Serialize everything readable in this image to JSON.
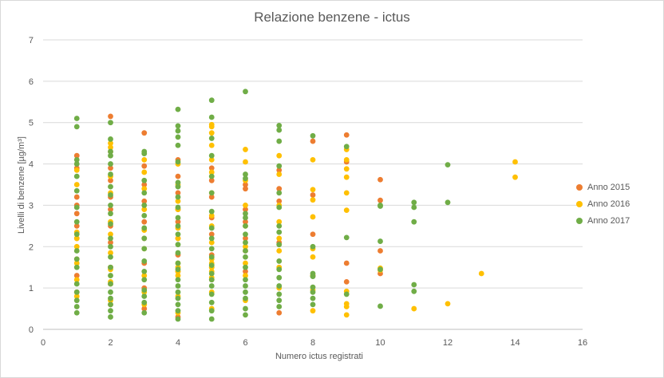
{
  "chart_data": {
    "type": "scatter",
    "title": "Relazione benzene - ictus",
    "xlabel": "Numero  ictus registrati",
    "ylabel": "Livelli di benzene [µg/m³]",
    "xlim": [
      0,
      16
    ],
    "ylim": [
      0,
      7
    ],
    "x_ticks": [
      "0",
      "2",
      "4",
      "6",
      "8",
      "10",
      "12",
      "14",
      "16"
    ],
    "y_ticks": [
      "0",
      "1",
      "2",
      "3",
      "4",
      "5",
      "6",
      "7"
    ],
    "grid": "horizontal",
    "legend_position": "right",
    "series": [
      {
        "name": "Anno 2015",
        "color": "#ED7D31",
        "points": [
          [
            1,
            4.2
          ],
          [
            1,
            3.9
          ],
          [
            1,
            3.2
          ],
          [
            1,
            3.0
          ],
          [
            1,
            2.8
          ],
          [
            1,
            2.5
          ],
          [
            1,
            2.2
          ],
          [
            1,
            1.7
          ],
          [
            1,
            1.3
          ],
          [
            1,
            0.9
          ],
          [
            2,
            5.15
          ],
          [
            2,
            4.3
          ],
          [
            2,
            3.9
          ],
          [
            2,
            3.6
          ],
          [
            2,
            3.2
          ],
          [
            2,
            2.9
          ],
          [
            2,
            2.5
          ],
          [
            2,
            2.1
          ],
          [
            2,
            1.5
          ],
          [
            2,
            1.1
          ],
          [
            2,
            0.6
          ],
          [
            3,
            4.75
          ],
          [
            3,
            3.95
          ],
          [
            3,
            3.5
          ],
          [
            3,
            3.1
          ],
          [
            3,
            2.6
          ],
          [
            3,
            2.2
          ],
          [
            3,
            1.6
          ],
          [
            3,
            1.0
          ],
          [
            3,
            0.5
          ],
          [
            4,
            4.1
          ],
          [
            4,
            3.7
          ],
          [
            4,
            3.3
          ],
          [
            4,
            2.9
          ],
          [
            4,
            2.6
          ],
          [
            4,
            2.2
          ],
          [
            4,
            1.8
          ],
          [
            4,
            1.4
          ],
          [
            4,
            0.3
          ],
          [
            5,
            3.9
          ],
          [
            5,
            3.6
          ],
          [
            5,
            3.2
          ],
          [
            5,
            2.7
          ],
          [
            5,
            2.3
          ],
          [
            5,
            1.8
          ],
          [
            5,
            1.5
          ],
          [
            5,
            1.2
          ],
          [
            6,
            3.5
          ],
          [
            6,
            3.4
          ],
          [
            6,
            2.9
          ],
          [
            6,
            2.6
          ],
          [
            6,
            2.2
          ],
          [
            6,
            1.9
          ],
          [
            6,
            1.4
          ],
          [
            7,
            3.85
          ],
          [
            7,
            3.4
          ],
          [
            7,
            3.1
          ],
          [
            7,
            2.1
          ],
          [
            7,
            0.4
          ],
          [
            8,
            4.55
          ],
          [
            8,
            3.25
          ],
          [
            8,
            2.3
          ],
          [
            8,
            1.3
          ],
          [
            9,
            4.7
          ],
          [
            9,
            4.05
          ],
          [
            9,
            1.6
          ],
          [
            9,
            1.15
          ],
          [
            10,
            3.62
          ],
          [
            10,
            3.12
          ],
          [
            10,
            1.9
          ],
          [
            10,
            1.35
          ]
        ]
      },
      {
        "name": "Anno 2016",
        "color": "#FFC000",
        "points": [
          [
            1,
            3.85
          ],
          [
            1,
            3.5
          ],
          [
            1,
            2.35
          ],
          [
            1,
            2.2
          ],
          [
            1,
            2.0
          ],
          [
            1,
            1.6
          ],
          [
            1,
            1.2
          ],
          [
            1,
            0.8
          ],
          [
            2,
            4.5
          ],
          [
            2,
            4.4
          ],
          [
            2,
            3.7
          ],
          [
            2,
            3.3
          ],
          [
            2,
            2.6
          ],
          [
            2,
            2.3
          ],
          [
            2,
            1.85
          ],
          [
            2,
            1.45
          ],
          [
            2,
            1.15
          ],
          [
            2,
            0.7
          ],
          [
            3,
            4.1
          ],
          [
            3,
            3.8
          ],
          [
            3,
            3.4
          ],
          [
            3,
            2.9
          ],
          [
            3,
            2.4
          ],
          [
            3,
            1.95
          ],
          [
            3,
            1.3
          ],
          [
            3,
            0.9
          ],
          [
            3,
            0.6
          ],
          [
            4,
            4.0
          ],
          [
            4,
            3.5
          ],
          [
            4,
            3.1
          ],
          [
            4,
            2.9
          ],
          [
            4,
            2.45
          ],
          [
            4,
            2.2
          ],
          [
            4,
            1.6
          ],
          [
            4,
            1.5
          ],
          [
            4,
            1.4
          ],
          [
            4,
            1.3
          ],
          [
            4,
            0.8
          ],
          [
            4,
            0.4
          ],
          [
            5,
            4.95
          ],
          [
            5,
            4.9
          ],
          [
            5,
            4.75
          ],
          [
            5,
            4.45
          ],
          [
            5,
            4.1
          ],
          [
            5,
            3.8
          ],
          [
            5,
            3.3
          ],
          [
            5,
            2.75
          ],
          [
            5,
            2.5
          ],
          [
            5,
            2.1
          ],
          [
            5,
            1.7
          ],
          [
            5,
            1.6
          ],
          [
            5,
            1.5
          ],
          [
            5,
            1.4
          ],
          [
            5,
            1.25
          ],
          [
            5,
            0.9
          ],
          [
            5,
            0.5
          ],
          [
            6,
            4.35
          ],
          [
            6,
            4.05
          ],
          [
            6,
            3.6
          ],
          [
            6,
            3.0
          ],
          [
            6,
            2.5
          ],
          [
            6,
            2.0
          ],
          [
            6,
            1.6
          ],
          [
            6,
            1.3
          ],
          [
            6,
            0.7
          ],
          [
            7,
            4.2
          ],
          [
            7,
            3.75
          ],
          [
            7,
            3.0
          ],
          [
            7,
            2.6
          ],
          [
            7,
            2.2
          ],
          [
            7,
            1.9
          ],
          [
            7,
            1.5
          ],
          [
            7,
            1.0
          ],
          [
            8,
            4.1
          ],
          [
            8,
            3.38
          ],
          [
            8,
            3.13
          ],
          [
            8,
            2.72
          ],
          [
            8,
            1.95
          ],
          [
            8,
            1.75
          ],
          [
            8,
            1.3
          ],
          [
            8,
            0.95
          ],
          [
            8,
            0.45
          ],
          [
            9,
            4.35
          ],
          [
            9,
            4.1
          ],
          [
            9,
            3.88
          ],
          [
            9,
            3.68
          ],
          [
            9,
            3.3
          ],
          [
            9,
            2.88
          ],
          [
            9,
            0.92
          ],
          [
            9,
            0.62
          ],
          [
            9,
            0.55
          ],
          [
            9,
            0.35
          ],
          [
            10,
            1.48
          ],
          [
            10,
            1.43
          ],
          [
            11,
            0.5
          ],
          [
            12,
            0.62
          ],
          [
            13,
            1.35
          ],
          [
            14,
            4.05
          ],
          [
            14,
            3.68
          ]
        ]
      },
      {
        "name": "Anno 2017",
        "color": "#70AD47",
        "points": [
          [
            1,
            5.1
          ],
          [
            1,
            4.9
          ],
          [
            1,
            4.1
          ],
          [
            1,
            4.0
          ],
          [
            1,
            3.7
          ],
          [
            1,
            3.35
          ],
          [
            1,
            2.95
          ],
          [
            1,
            2.6
          ],
          [
            1,
            2.3
          ],
          [
            1,
            1.9
          ],
          [
            1,
            1.7
          ],
          [
            1,
            1.5
          ],
          [
            1,
            1.1
          ],
          [
            1,
            0.9
          ],
          [
            1,
            0.7
          ],
          [
            1,
            0.55
          ],
          [
            1,
            0.4
          ],
          [
            2,
            5.0
          ],
          [
            2,
            4.6
          ],
          [
            2,
            4.3
          ],
          [
            2,
            4.2
          ],
          [
            2,
            4.0
          ],
          [
            2,
            3.75
          ],
          [
            2,
            3.45
          ],
          [
            2,
            3.25
          ],
          [
            2,
            3.0
          ],
          [
            2,
            2.8
          ],
          [
            2,
            2.55
          ],
          [
            2,
            2.2
          ],
          [
            2,
            2.0
          ],
          [
            2,
            1.75
          ],
          [
            2,
            1.5
          ],
          [
            2,
            1.3
          ],
          [
            2,
            1.1
          ],
          [
            2,
            0.9
          ],
          [
            2,
            0.75
          ],
          [
            2,
            0.6
          ],
          [
            2,
            0.45
          ],
          [
            2,
            0.3
          ],
          [
            3,
            4.3
          ],
          [
            3,
            4.25
          ],
          [
            3,
            3.6
          ],
          [
            3,
            3.3
          ],
          [
            3,
            3.0
          ],
          [
            3,
            2.75
          ],
          [
            3,
            2.45
          ],
          [
            3,
            2.2
          ],
          [
            3,
            1.95
          ],
          [
            3,
            1.65
          ],
          [
            3,
            1.4
          ],
          [
            3,
            1.2
          ],
          [
            3,
            0.95
          ],
          [
            3,
            0.8
          ],
          [
            3,
            0.65
          ],
          [
            3,
            0.4
          ],
          [
            4,
            5.32
          ],
          [
            4,
            4.92
          ],
          [
            4,
            4.8
          ],
          [
            4,
            4.65
          ],
          [
            4,
            4.45
          ],
          [
            4,
            4.05
          ],
          [
            4,
            3.55
          ],
          [
            4,
            3.45
          ],
          [
            4,
            3.2
          ],
          [
            4,
            2.95
          ],
          [
            4,
            2.7
          ],
          [
            4,
            2.5
          ],
          [
            4,
            2.3
          ],
          [
            4,
            2.05
          ],
          [
            4,
            1.85
          ],
          [
            4,
            1.6
          ],
          [
            4,
            1.45
          ],
          [
            4,
            1.2
          ],
          [
            4,
            1.05
          ],
          [
            4,
            0.9
          ],
          [
            4,
            0.75
          ],
          [
            4,
            0.6
          ],
          [
            4,
            0.45
          ],
          [
            4,
            0.25
          ],
          [
            5,
            5.54
          ],
          [
            5,
            5.13
          ],
          [
            5,
            4.62
          ],
          [
            5,
            4.2
          ],
          [
            5,
            3.7
          ],
          [
            5,
            3.3
          ],
          [
            5,
            2.85
          ],
          [
            5,
            2.45
          ],
          [
            5,
            2.2
          ],
          [
            5,
            1.95
          ],
          [
            5,
            1.75
          ],
          [
            5,
            1.55
          ],
          [
            5,
            1.35
          ],
          [
            5,
            1.2
          ],
          [
            5,
            1.05
          ],
          [
            5,
            0.85
          ],
          [
            5,
            0.65
          ],
          [
            5,
            0.45
          ],
          [
            5,
            0.25
          ],
          [
            6,
            5.75
          ],
          [
            6,
            3.75
          ],
          [
            6,
            3.65
          ],
          [
            6,
            2.8
          ],
          [
            6,
            2.7
          ],
          [
            6,
            2.5
          ],
          [
            6,
            2.3
          ],
          [
            6,
            2.1
          ],
          [
            6,
            1.9
          ],
          [
            6,
            1.75
          ],
          [
            6,
            1.5
          ],
          [
            6,
            1.2
          ],
          [
            6,
            1.05
          ],
          [
            6,
            0.9
          ],
          [
            6,
            0.75
          ],
          [
            6,
            0.5
          ],
          [
            6,
            0.35
          ],
          [
            7,
            4.93
          ],
          [
            7,
            4.82
          ],
          [
            7,
            4.55
          ],
          [
            7,
            3.95
          ],
          [
            7,
            3.3
          ],
          [
            7,
            2.95
          ],
          [
            7,
            2.5
          ],
          [
            7,
            2.35
          ],
          [
            7,
            2.05
          ],
          [
            7,
            1.65
          ],
          [
            7,
            1.45
          ],
          [
            7,
            1.25
          ],
          [
            7,
            1.05
          ],
          [
            7,
            0.85
          ],
          [
            7,
            0.7
          ],
          [
            7,
            0.55
          ],
          [
            8,
            4.68
          ],
          [
            8,
            2.0
          ],
          [
            8,
            1.35
          ],
          [
            8,
            1.28
          ],
          [
            8,
            1.02
          ],
          [
            8,
            0.9
          ],
          [
            8,
            0.75
          ],
          [
            8,
            0.6
          ],
          [
            9,
            4.42
          ],
          [
            9,
            2.22
          ],
          [
            9,
            0.85
          ],
          [
            10,
            3.0
          ],
          [
            10,
            2.98
          ],
          [
            10,
            2.13
          ],
          [
            10,
            1.45
          ],
          [
            10,
            0.56
          ],
          [
            11,
            3.07
          ],
          [
            11,
            2.95
          ],
          [
            11,
            2.6
          ],
          [
            11,
            1.08
          ],
          [
            11,
            0.92
          ],
          [
            12,
            3.98
          ],
          [
            12,
            3.07
          ]
        ]
      }
    ]
  }
}
